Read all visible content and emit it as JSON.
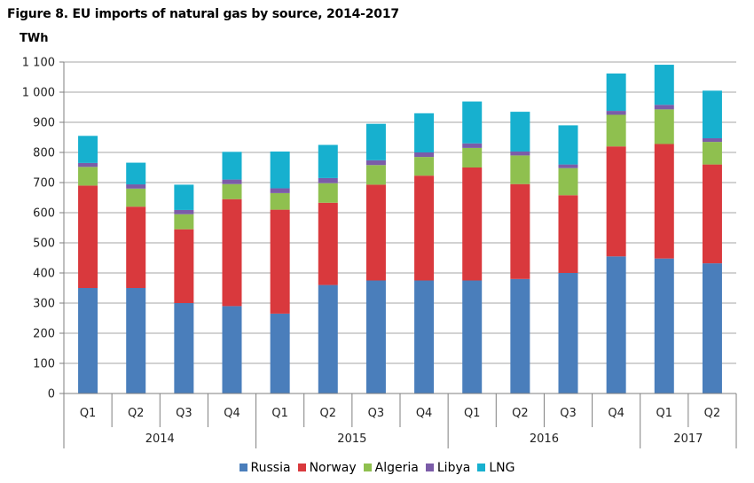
{
  "title": "Figure 8. EU imports of natural gas by source, 2014-2017",
  "unit": "TWh",
  "chart_data": {
    "type": "bar",
    "stacked": true,
    "ylim": [
      0,
      1100
    ],
    "yticks": [
      "0",
      "100",
      "200",
      "300",
      "400",
      "500",
      "600",
      "700",
      "800",
      "900",
      "1 000",
      "1 100"
    ],
    "ytick_values": [
      0,
      100,
      200,
      300,
      400,
      500,
      600,
      700,
      800,
      900,
      1000,
      1100
    ],
    "grid": true,
    "legend_position": "bottom",
    "categories": [
      "Q1",
      "Q2",
      "Q3",
      "Q4",
      "Q1",
      "Q2",
      "Q3",
      "Q4",
      "Q1",
      "Q2",
      "Q3",
      "Q4",
      "Q1",
      "Q2"
    ],
    "years": [
      {
        "label": "2014",
        "count": 4
      },
      {
        "label": "2015",
        "count": 4
      },
      {
        "label": "2016",
        "count": 4
      },
      {
        "label": "2017",
        "count": 2
      }
    ],
    "series": [
      {
        "name": "Russia",
        "color": "#4a7ebb",
        "values": [
          350,
          350,
          300,
          290,
          265,
          360,
          375,
          375,
          375,
          380,
          400,
          455,
          448,
          432
        ]
      },
      {
        "name": "Norway",
        "color": "#d9393d",
        "values": [
          340,
          270,
          245,
          355,
          345,
          273,
          318,
          348,
          375,
          315,
          258,
          365,
          380,
          328
        ]
      },
      {
        "name": "Algeria",
        "color": "#8fc04f",
        "values": [
          62,
          60,
          50,
          50,
          55,
          65,
          65,
          62,
          65,
          95,
          90,
          105,
          115,
          75
        ]
      },
      {
        "name": "Libya",
        "color": "#7b5ca8",
        "values": [
          13,
          14,
          14,
          15,
          16,
          17,
          16,
          15,
          15,
          13,
          12,
          13,
          15,
          12
        ]
      },
      {
        "name": "LNG",
        "color": "#17b0cf",
        "values": [
          90,
          72,
          84,
          92,
          122,
          110,
          121,
          130,
          139,
          132,
          130,
          124,
          133,
          158
        ]
      }
    ]
  }
}
